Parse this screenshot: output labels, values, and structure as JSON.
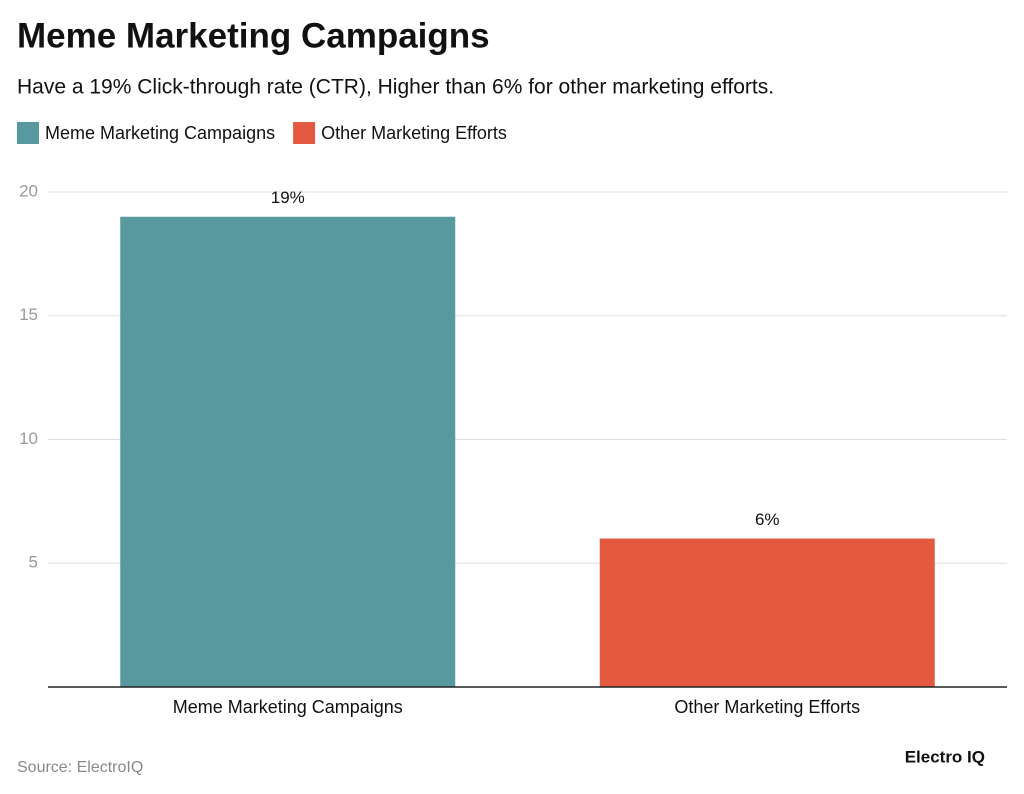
{
  "chart_data": {
    "type": "bar",
    "title": "Meme Marketing Campaigns",
    "subtitle": "Have a 19% Click-through rate (CTR), Higher than 6% for other marketing efforts.",
    "categories": [
      "Meme Marketing Campaigns",
      "Other Marketing Efforts"
    ],
    "series": [
      {
        "name": "Meme Marketing Campaigns",
        "color": "#5899a0",
        "values": [
          19,
          null
        ],
        "value_labels": [
          "19%",
          null
        ]
      },
      {
        "name": "Other Marketing Efforts",
        "color": "#e45a40",
        "values": [
          null,
          6
        ],
        "value_labels": [
          null,
          "6%"
        ]
      }
    ],
    "ylim": [
      0,
      20
    ],
    "yticks": [
      5,
      10,
      15,
      20
    ],
    "grid": true,
    "source": "Source: ElectroIQ",
    "brand": "Electro IQ"
  }
}
